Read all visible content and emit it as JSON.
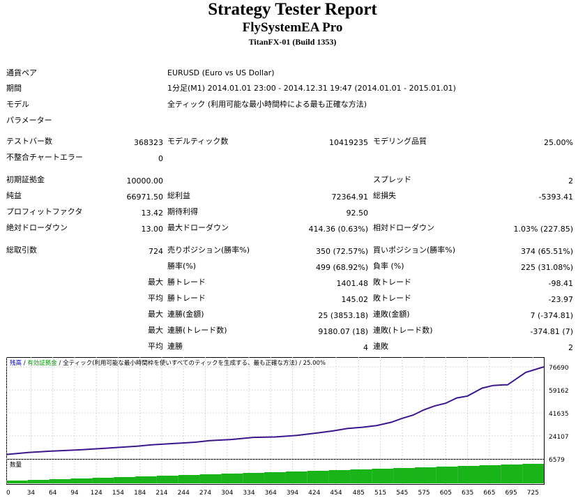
{
  "header": {
    "title": "Strategy Tester Report",
    "subtitle": "FlySystemEA Pro",
    "build": "TitanFX-01 (Build 1353)"
  },
  "info": {
    "symbol_label": "通貨ペア",
    "symbol_value": "EURUSD (Euro vs US Dollar)",
    "period_label": "期間",
    "period_value": "1分足(M1) 2014.01.01 23:00 - 2014.12.31 19:47 (2014.01.01 - 2015.01.01)",
    "model_label": "モデル",
    "model_value": "全ティック (利用可能な最小時間枠による最も正確な方法)",
    "params_label": "パラメーター"
  },
  "stats": {
    "bars_label": "テストバー数",
    "bars_value": "368323",
    "ticks_label": "モデルティック数",
    "ticks_value": "10419235",
    "quality_label": "モデリング品質",
    "quality_value": "25.00%",
    "mismatch_label": "不整合チャートエラー",
    "mismatch_value": "0",
    "deposit_label": "初期証拠金",
    "deposit_value": "10000.00",
    "spread_label": "スプレッド",
    "spread_value": "2",
    "net_label": "純益",
    "net_value": "66971.50",
    "gross_profit_label": "総利益",
    "gross_profit_value": "72364.91",
    "gross_loss_label": "総損失",
    "gross_loss_value": "-5393.41",
    "pf_label": "プロフィットファクタ",
    "pf_value": "13.42",
    "payoff_label": "期待利得",
    "payoff_value": "92.50",
    "abs_dd_label": "絶対ドローダウン",
    "abs_dd_value": "13.00",
    "max_dd_label": "最大ドローダウン",
    "max_dd_value": "414.36 (0.63%)",
    "rel_dd_label": "相対ドローダウン",
    "rel_dd_value": "1.03% (227.85)",
    "total_label": "総取引数",
    "total_value": "724",
    "short_label": "売りポジション(勝率%)",
    "short_value": "350 (72.57%)",
    "long_label": "買いポジション(勝率%)",
    "long_value": "374 (65.51%)",
    "win_rate_label": "勝率(%)",
    "win_rate_value": "499 (68.92%)",
    "loss_rate_label": "負率 (%)",
    "loss_rate_value": "225 (31.08%)",
    "largest_label": "最大",
    "largest_win_label": "勝トレード",
    "largest_win_value": "1401.48",
    "largest_loss_label": "敗トレード",
    "largest_loss_value": "-98.41",
    "average_label": "平均",
    "average_win_label": "勝トレード",
    "average_win_value": "145.02",
    "average_loss_label": "敗トレード",
    "average_loss_value": "-23.97",
    "max_label": "最大",
    "max_cons_wins_label": "連勝(金額)",
    "max_cons_wins_value": "25 (3853.18)",
    "max_cons_losses_label": "連敗(金額)",
    "max_cons_losses_value": "7 (-374.81)",
    "max2_label": "最大",
    "max_cons_profit_label": "連勝(トレード数)",
    "max_cons_profit_value": "9180.07 (18)",
    "max_cons_loss_label": "連敗(トレード数)",
    "max_cons_loss_value": "-374.81 (7)",
    "avg2_label": "平均",
    "avg_cons_wins_label": "連勝",
    "avg_cons_wins_value": "4",
    "avg_cons_losses_label": "連敗",
    "avg_cons_losses_value": "2"
  },
  "chart_legend": {
    "balance": "残高",
    "equity": "有効証拠金",
    "model": "全ティック(利用可能な最小時間枠を使いすべてのティックを生成する、最も正確な方法)",
    "quality": "25.00%"
  },
  "chart_data": {
    "type": "line",
    "y_ticks": [
      76690,
      59162,
      41635,
      24107,
      6579
    ],
    "x_ticks": [
      0,
      34,
      64,
      94,
      124,
      154,
      184,
      214,
      244,
      274,
      304,
      334,
      364,
      394,
      424,
      454,
      485,
      515,
      545,
      575,
      605,
      635,
      665,
      695,
      725
    ],
    "ylim": [
      6579,
      76690
    ],
    "xlim": [
      0,
      740
    ],
    "series": [
      {
        "name": "残高",
        "x": [
          0,
          30,
          60,
          100,
          130,
          150,
          180,
          200,
          230,
          260,
          280,
          310,
          340,
          370,
          400,
          430,
          450,
          470,
          490,
          510,
          530,
          545,
          560,
          575,
          590,
          605,
          620,
          635,
          655,
          670,
          685,
          690,
          715,
          740
        ],
        "y": [
          10000,
          11500,
          12500,
          13500,
          14500,
          15200,
          16300,
          17300,
          18300,
          19300,
          20500,
          21400,
          23000,
          23300,
          24500,
          26500,
          28000,
          29800,
          30700,
          32000,
          34500,
          37500,
          40000,
          44000,
          47000,
          49000,
          53000,
          54500,
          60500,
          62500,
          63000,
          63000,
          72500,
          76690
        ]
      }
    ],
    "volume_label": "数量"
  }
}
